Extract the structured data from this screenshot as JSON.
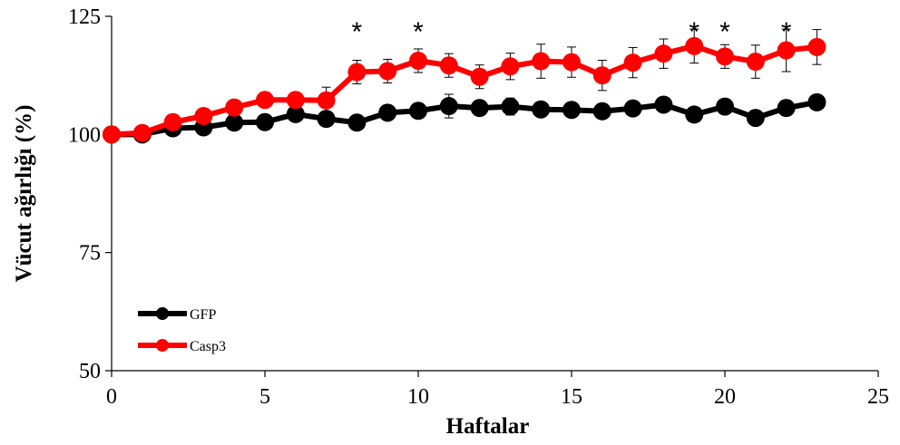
{
  "chart_data": {
    "type": "line",
    "xlabel": "Haftalar",
    "ylabel": "Vücut ağırlığı (%)",
    "xlim": [
      0,
      25
    ],
    "ylim": [
      50,
      125
    ],
    "xticks": [
      0,
      5,
      10,
      15,
      20,
      25
    ],
    "yticks": [
      50,
      75,
      100,
      125
    ],
    "grid": false,
    "legend_position": "bottom-left",
    "series": [
      {
        "name": "GFP",
        "color": "#000000",
        "x": [
          0,
          1,
          2,
          3,
          4,
          5,
          6,
          7,
          8,
          9,
          10,
          11,
          12,
          13,
          14,
          15,
          16,
          17,
          18,
          19,
          20,
          21,
          22,
          23
        ],
        "values": [
          100,
          100,
          101.3,
          101.5,
          102.5,
          102.6,
          104.3,
          103.3,
          102.5,
          104.6,
          105,
          106,
          105.6,
          105.9,
          105.3,
          105.2,
          104.9,
          105.5,
          106.3,
          104.2,
          105.9,
          103.5,
          105.6,
          106.8
        ],
        "errors": [
          0,
          0.5,
          0.8,
          1,
          1.2,
          1.5,
          1.3,
          1.2,
          1.4,
          1.3,
          1.3,
          2.5,
          1.5,
          1.8,
          1.4,
          1.4,
          1.5,
          1.4,
          1.5,
          1.3,
          1.3,
          1.3,
          1.6,
          1.4
        ]
      },
      {
        "name": "Casp3",
        "color": "#ff0000",
        "x": [
          0,
          1,
          2,
          3,
          4,
          5,
          6,
          7,
          8,
          9,
          10,
          11,
          12,
          13,
          14,
          15,
          16,
          17,
          18,
          19,
          20,
          21,
          22,
          23
        ],
        "values": [
          100,
          100.3,
          102.6,
          103.9,
          105.7,
          107.3,
          107.3,
          107.2,
          113.2,
          113.4,
          115.6,
          114.6,
          112.2,
          114.4,
          115.5,
          115.3,
          112.5,
          115.2,
          117.1,
          118.7,
          116.5,
          115.4,
          117.8,
          118.5
        ],
        "errors": [
          0,
          0.5,
          0.8,
          1,
          1.2,
          1.5,
          1.5,
          2.8,
          2.5,
          2.5,
          2.5,
          2.5,
          2.5,
          2.8,
          3.6,
          3.2,
          3.2,
          3.2,
          3.1,
          3.6,
          2.5,
          3.5,
          4.5,
          3.7
        ]
      }
    ],
    "annotations": [
      {
        "text": "*",
        "x": 8,
        "y": 124
      },
      {
        "text": "*",
        "x": 10,
        "y": 124
      },
      {
        "text": "*",
        "x": 19,
        "y": 124
      },
      {
        "text": "*",
        "x": 20,
        "y": 124
      },
      {
        "text": "*",
        "x": 22,
        "y": 124
      }
    ]
  }
}
